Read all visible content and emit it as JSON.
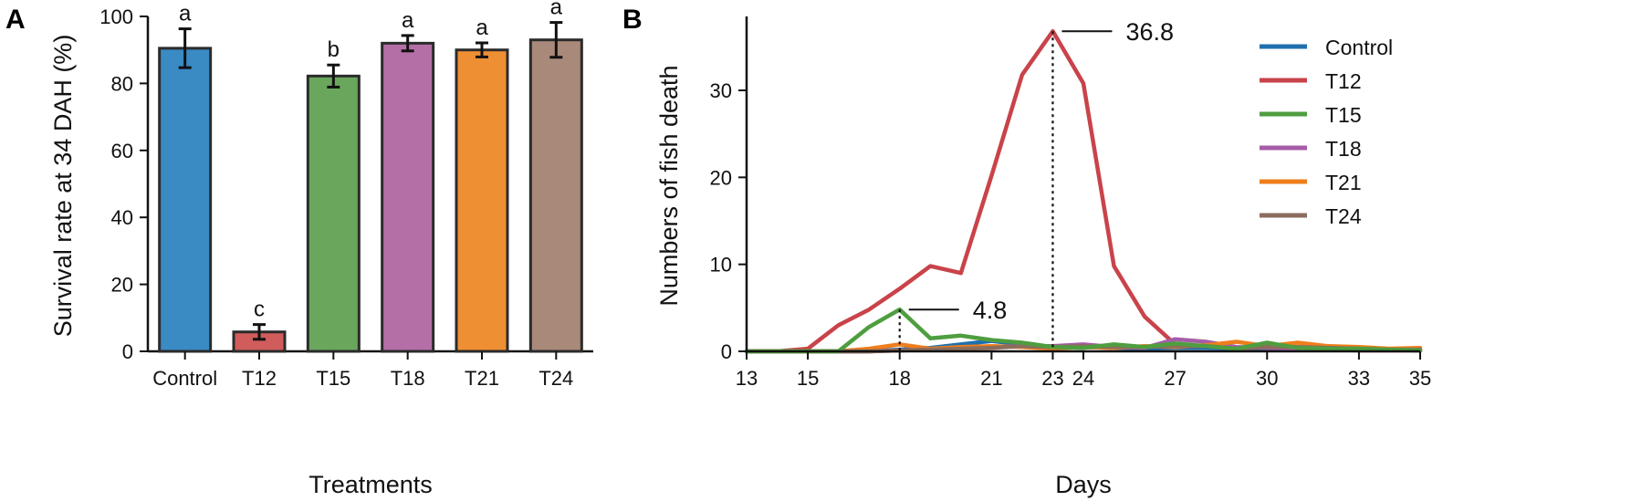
{
  "chart_data": [
    {
      "panel": "A",
      "type": "bar",
      "xlabel": "Treatments",
      "ylabel": "Survival rate at 34 DAH (%)",
      "ylim": [
        0,
        100
      ],
      "yticks": [
        0,
        20,
        40,
        60,
        80,
        100
      ],
      "categories": [
        "Control",
        "T12",
        "T15",
        "T18",
        "T21",
        "T24"
      ],
      "values": [
        90.5,
        5.8,
        82.2,
        92.0,
        90.0,
        93.0
      ],
      "errors": [
        5.8,
        2.2,
        3.3,
        2.3,
        2.1,
        5.2
      ],
      "significance": [
        "a",
        "c",
        "b",
        "a",
        "a",
        "a"
      ],
      "colors": [
        "#3a8ac4",
        "#d05c5c",
        "#6aa75d",
        "#b56fa7",
        "#ee8f34",
        "#a98a7a"
      ]
    },
    {
      "panel": "B",
      "type": "line",
      "xlabel": "Days",
      "ylabel": "Numbers of fish death",
      "xlim": [
        13,
        35
      ],
      "ylim": [
        0,
        38.5
      ],
      "xticks": [
        13,
        15,
        18,
        21,
        23,
        24,
        27,
        30,
        33,
        35
      ],
      "yticks": [
        0,
        10,
        20,
        30
      ],
      "legend_position": "top-right",
      "annotations": [
        {
          "x": 23,
          "y": 36.8,
          "label": "36.8"
        },
        {
          "x": 18,
          "y": 4.8,
          "label": "4.8"
        }
      ],
      "series": [
        {
          "name": "Control",
          "color": "#1f6fae",
          "x": [
            13,
            14,
            15,
            16,
            17,
            18,
            19,
            20,
            21,
            22,
            23,
            24,
            25,
            26,
            27,
            28,
            29,
            30,
            31,
            32,
            33,
            34,
            35
          ],
          "y": [
            0,
            0,
            0,
            0,
            0,
            0.2,
            0.4,
            0.8,
            1.2,
            0.8,
            0.4,
            0.5,
            0.4,
            0.3,
            0.4,
            0.4,
            0.3,
            0.3,
            0.3,
            0.2,
            0.2,
            0.2,
            0.1
          ]
        },
        {
          "name": "T12",
          "color": "#c9434a",
          "x": [
            13,
            14,
            15,
            16,
            17,
            18,
            19,
            20,
            21,
            22,
            23,
            24,
            25,
            26,
            27,
            28,
            29,
            30,
            31,
            32,
            33,
            34,
            35
          ],
          "y": [
            0,
            0,
            0.3,
            3.0,
            4.8,
            7.2,
            9.8,
            9.0,
            20.2,
            31.8,
            36.8,
            30.8,
            9.8,
            4.0,
            0.8,
            0.5,
            0.3,
            0.2,
            0.2,
            0.2,
            0.1,
            0.1,
            0.1
          ]
        },
        {
          "name": "T15",
          "color": "#4e9e3f",
          "x": [
            13,
            14,
            15,
            16,
            17,
            18,
            19,
            20,
            21,
            22,
            23,
            24,
            25,
            26,
            27,
            28,
            29,
            30,
            31,
            32,
            33,
            34,
            35
          ],
          "y": [
            0,
            0,
            0,
            0,
            2.8,
            4.8,
            1.5,
            1.8,
            1.3,
            1.0,
            0.5,
            0.4,
            0.8,
            0.5,
            0.9,
            0.6,
            0.3,
            1.0,
            0.4,
            0.3,
            0.3,
            0.2,
            0.1
          ]
        },
        {
          "name": "T18",
          "color": "#a65ca8",
          "x": [
            13,
            14,
            15,
            16,
            17,
            18,
            19,
            20,
            21,
            22,
            23,
            24,
            25,
            26,
            27,
            28,
            29,
            30,
            31,
            32,
            33,
            34,
            35
          ],
          "y": [
            0,
            0,
            0,
            0,
            0,
            0.1,
            0.2,
            0.3,
            0.5,
            0.6,
            0.6,
            0.8,
            0.5,
            0.4,
            1.4,
            1.1,
            0.5,
            0.4,
            0.3,
            0.4,
            0.3,
            0.2,
            0.1
          ]
        },
        {
          "name": "T21",
          "color": "#ee7e1c",
          "x": [
            13,
            14,
            15,
            16,
            17,
            18,
            19,
            20,
            21,
            22,
            23,
            24,
            25,
            26,
            27,
            28,
            29,
            30,
            31,
            32,
            33,
            34,
            35
          ],
          "y": [
            0,
            0,
            0,
            0,
            0.3,
            0.8,
            0.3,
            0.5,
            0.6,
            0.5,
            0.3,
            0.5,
            0.4,
            0.6,
            0.5,
            0.7,
            1.1,
            0.6,
            1.0,
            0.6,
            0.5,
            0.3,
            0.4
          ]
        },
        {
          "name": "T24",
          "color": "#8b6d5d",
          "x": [
            13,
            14,
            15,
            16,
            17,
            18,
            19,
            20,
            21,
            22,
            23,
            24,
            25,
            26,
            27,
            28,
            29,
            30,
            31,
            32,
            33,
            34,
            35
          ],
          "y": [
            0,
            0,
            0,
            0,
            0,
            0.1,
            0.2,
            0.3,
            0.4,
            0.6,
            0.5,
            0.6,
            0.5,
            0.5,
            0.6,
            0.6,
            0.3,
            0.5,
            0.5,
            0.4,
            0.3,
            0.2,
            0.2
          ]
        }
      ]
    }
  ]
}
